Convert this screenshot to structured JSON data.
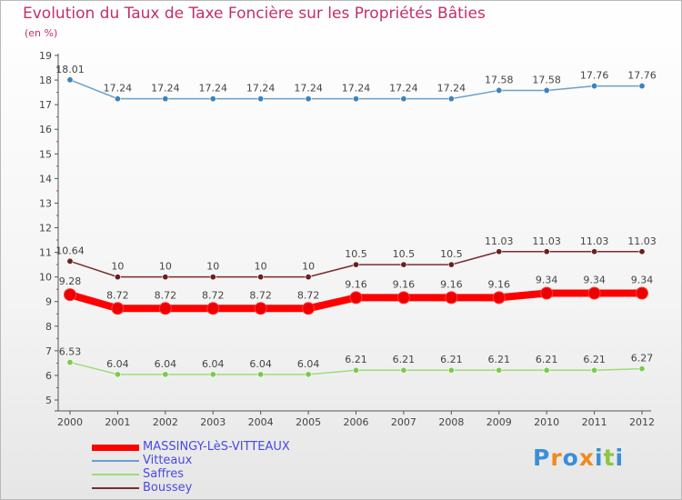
{
  "chart_data": {
    "type": "line",
    "title": "Evolution du Taux de Taxe Foncière sur les Propriétés Bâties",
    "unit": "(en %)",
    "x": [
      "2000",
      "2001",
      "2002",
      "2003",
      "2004",
      "2005",
      "2006",
      "2007",
      "2008",
      "2009",
      "2010",
      "2011",
      "2012"
    ],
    "y_ticks": [
      "5",
      "6",
      "7",
      "8",
      "9",
      "10",
      "11",
      "12",
      "13",
      "14",
      "15",
      "16",
      "17",
      "18",
      "19"
    ],
    "ylim": [
      5,
      19
    ],
    "grid": false,
    "legend_position": "bottom-left",
    "series": [
      {
        "name": "MASSINGY-LèS-VITTEAUX",
        "color": "#ff0000",
        "point_color": "#ee0000",
        "values": [
          9.28,
          8.72,
          8.72,
          8.72,
          8.72,
          8.72,
          9.16,
          9.16,
          9.16,
          9.16,
          9.34,
          9.34,
          9.34
        ],
        "labels": [
          "9.28",
          "8.72",
          "8.72",
          "8.72",
          "8.72",
          "8.72",
          "9.16",
          "9.16",
          "9.16",
          "9.16",
          "9.34",
          "9.34",
          "9.34"
        ]
      },
      {
        "name": "Vitteaux",
        "color": "#6a9fcb",
        "point_color": "#3d82be",
        "values": [
          18.01,
          17.24,
          17.24,
          17.24,
          17.24,
          17.24,
          17.24,
          17.24,
          17.24,
          17.58,
          17.58,
          17.76,
          17.76
        ],
        "labels": [
          "18.01",
          "17.24",
          "17.24",
          "17.24",
          "17.24",
          "17.24",
          "17.24",
          "17.24",
          "17.24",
          "17.58",
          "17.58",
          "17.76",
          "17.76"
        ]
      },
      {
        "name": "Saffres",
        "color": "#9fdb7a",
        "point_color": "#7cc94e",
        "values": [
          6.53,
          6.04,
          6.04,
          6.04,
          6.04,
          6.04,
          6.21,
          6.21,
          6.21,
          6.21,
          6.21,
          6.21,
          6.27
        ],
        "labels": [
          "6.53",
          "6.04",
          "6.04",
          "6.04",
          "6.04",
          "6.04",
          "6.21",
          "6.21",
          "6.21",
          "6.21",
          "6.21",
          "6.21",
          "6.27"
        ]
      },
      {
        "name": "Boussey",
        "color": "#7a2d2d",
        "point_color": "#6a1f1f",
        "values": [
          10.64,
          10,
          10,
          10,
          10,
          10,
          10.5,
          10.5,
          10.5,
          11.03,
          11.03,
          11.03,
          11.03
        ],
        "labels": [
          "10.64",
          "10",
          "10",
          "10",
          "10",
          "10",
          "10.5",
          "10.5",
          "10.5",
          "11.03",
          "11.03",
          "11.03",
          "11.03"
        ]
      }
    ]
  },
  "legend": {
    "items": [
      {
        "label": "MASSINGY-LèS-VITTEAUX",
        "color": "#ff0000"
      },
      {
        "label": "Vitteaux",
        "color": "#6a9fcb"
      },
      {
        "label": "Saffres",
        "color": "#9fdb7a"
      },
      {
        "label": "Boussey",
        "color": "#7a2d2d"
      }
    ]
  },
  "logo": {
    "text": "Proxiti",
    "colors": [
      "#3a8fd6",
      "#f08a1c",
      "#3a8fd6",
      "#f08a1c",
      "#3a8fd6",
      "#8cc63f",
      "#3a8fd6"
    ]
  }
}
